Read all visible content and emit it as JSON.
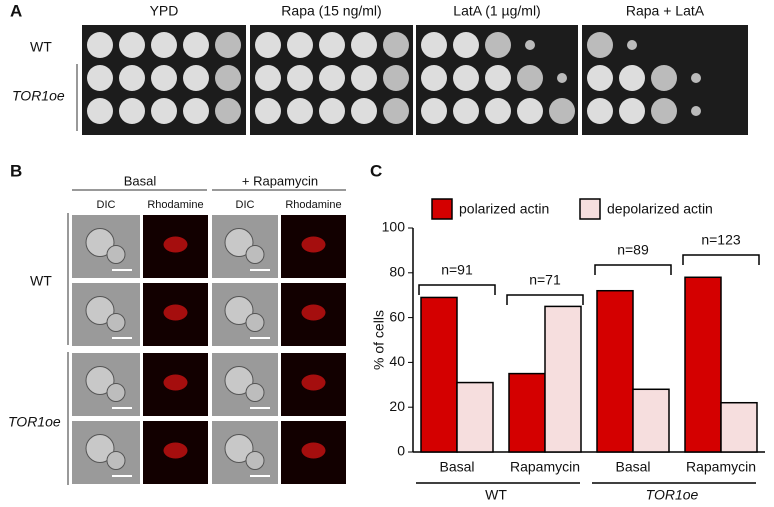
{
  "panel_a": {
    "label": "A",
    "conditions": [
      "YPD",
      "Rapa (15 ng/ml)",
      "LatA (1 µg/ml)",
      "Rapa + LatA"
    ],
    "strains": [
      "WT",
      "TOR1oe"
    ]
  },
  "panel_b": {
    "label": "B",
    "treatments": [
      "Basal",
      "+ Rapamycin"
    ],
    "channels": [
      "DIC",
      "Rhodamine",
      "DIC",
      "Rhodamine"
    ],
    "strains": [
      "WT",
      "TOR1oe"
    ]
  },
  "chart_data": {
    "type": "bar",
    "panel_label": "C",
    "y_label": "% of cells",
    "categories": [
      "Basal",
      "Rapamycin",
      "Basal",
      "Rapamycin"
    ],
    "groups": [
      "WT",
      "TOR1oe"
    ],
    "series": [
      {
        "name": "polarized actin",
        "color": "#d40000",
        "values": [
          69,
          35,
          72,
          78
        ]
      },
      {
        "name": "depolarized actin",
        "color": "#f6dede",
        "values": [
          31,
          65,
          28,
          22
        ]
      }
    ],
    "annotations": [
      "n=91",
      "n=71",
      "n=89",
      "n=123"
    ],
    "ylim": [
      0,
      100
    ],
    "yticks": [
      0,
      20,
      40,
      60,
      80,
      100
    ],
    "legend": "top"
  }
}
